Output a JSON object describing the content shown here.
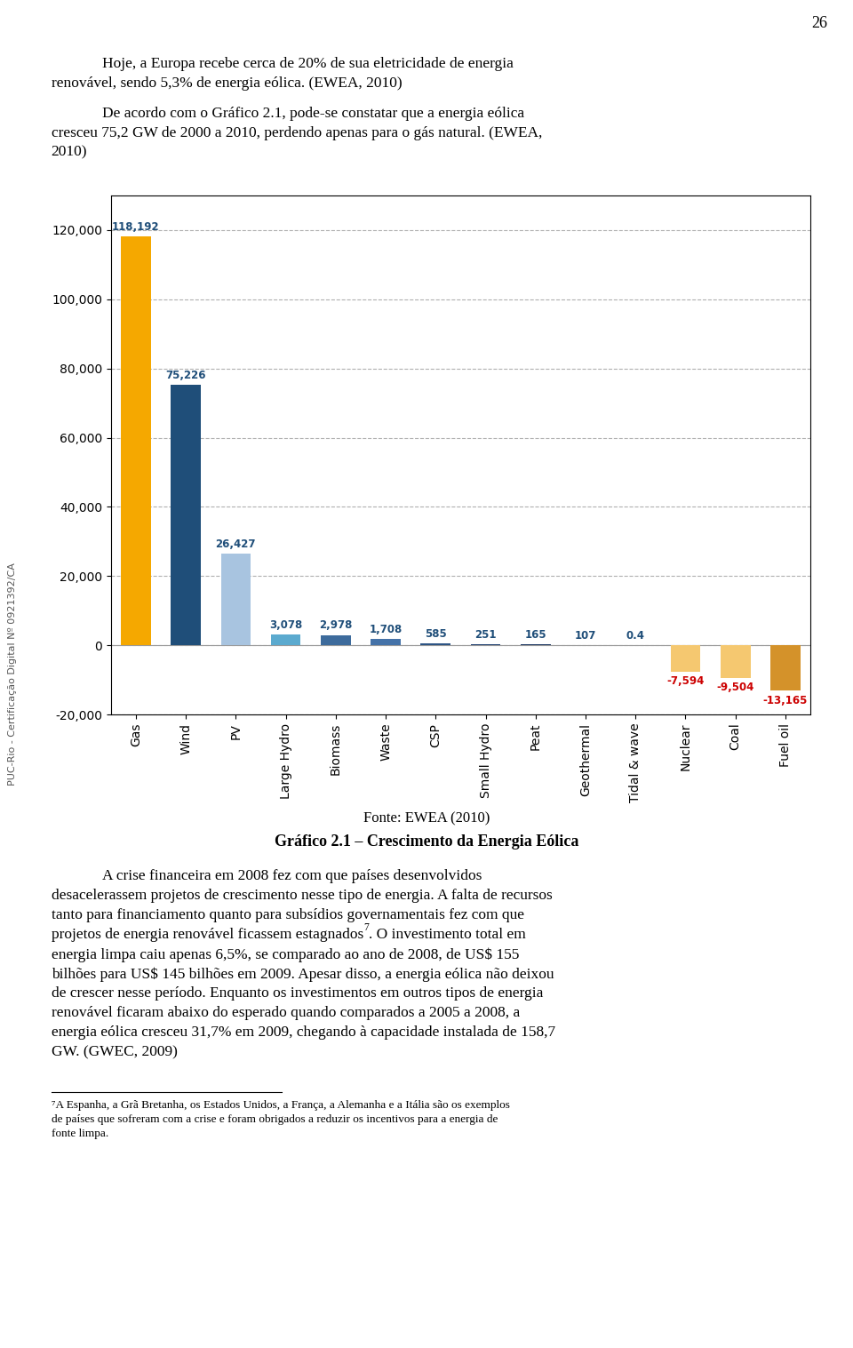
{
  "chart_data": {
    "type": "bar",
    "title": "Gráfico 2.1 – Crescimento da Energia Eólica",
    "categories": [
      "Gas",
      "Wind",
      "PV",
      "Large Hydro",
      "Biomass",
      "Waste",
      "CSP",
      "Small Hydro",
      "Peat",
      "Geothermal",
      "Tidal & wave",
      "Nuclear",
      "Coal",
      "Fuel oil"
    ],
    "values": [
      118192,
      75226,
      26427,
      3078,
      2978,
      1708,
      585,
      251,
      165,
      107,
      0.4,
      -7594,
      -9504,
      -13165
    ],
    "value_labels": [
      "118,192",
      "75,226",
      "26,427",
      "3,078",
      "2,978",
      "1,708",
      "585",
      "251",
      "165",
      "107",
      "0.4",
      "-7,594",
      "-9,504",
      "-13,165"
    ],
    "data_labels": true,
    "colors": [
      "#F5A800",
      "#1F4E79",
      "#A8C4E0",
      "#5BAACF",
      "#3D6B9C",
      "#4472A8",
      "#2D5484",
      "#1E3F6F",
      "#1A3560",
      "#1A3560",
      "#1A3560",
      "#F5C870",
      "#F5C870",
      "#D4922A"
    ],
    "ylim": [
      -20000,
      130000
    ],
    "yticks": [
      {
        "value": -20000,
        "label": "-20,000"
      },
      0,
      {
        "value": 20000,
        "label": "20,000"
      },
      {
        "value": 40000,
        "label": "40,000"
      },
      {
        "value": 60000,
        "label": "60,000"
      },
      {
        "value": 80000,
        "label": "80,000"
      },
      {
        "value": 100000,
        "label": "100,000"
      },
      {
        "value": 120000,
        "label": "120,000"
      }
    ],
    "grid": true,
    "annotations": [
      "26",
      "Hoje, a Europa recebe cerca de 20% de sua eletricidade de energia",
      "renovável, sendo 5,3% de energia eólica. (EWEA, 2010)",
      "De acordo com o Gráfico 2.1, pode-se constatar que a energia eólica",
      "cresceu 75,2 GW de 2000 a 2010, perdendo apenas para o gás natural. (EWEA,",
      "2010)",
      "Fonte: EWEA (2010)",
      "A crise financeira em 2008 fez com que países desenvolvidos",
      "desacelerassem projetos de crescimento nesse tipo de energia. A falta de recursos",
      "tanto para financiamento quanto para subsídios governamentais fez com que",
      "projetos de energia renovável ficassem estagnados",
      "7",
      ". O investimento total em",
      "energia limpa caiu apenas 6,5%, se comparado ao ano de 2008, de US$ 155",
      "bilhões para US$ 145 bilhões em 2009. Apesar disso, a energia eólica não deixou",
      "de crescer nesse período. Enquanto os investimentos em outros tipos de energia",
      "renovável ficaram abaixo do esperado quando comparados a 2005 a 2008, a",
      "energia eólica cresceu 31,7% em 2009, chegando à capacidade instalada de 158,7",
      "GW. (GWEC, 2009)",
      "⁷A Espanha, a Grã Bretanha, os Estados Unidos, a França, a Alemanha e a Itália são os exemplos",
      "de países que sofreram com a crise e foram obrigados a reduzir os incentivos para a energia de",
      "fonte limpa.",
      "PUC-Rio - Certificação Digital Nº 0921392/CA"
    ]
  }
}
